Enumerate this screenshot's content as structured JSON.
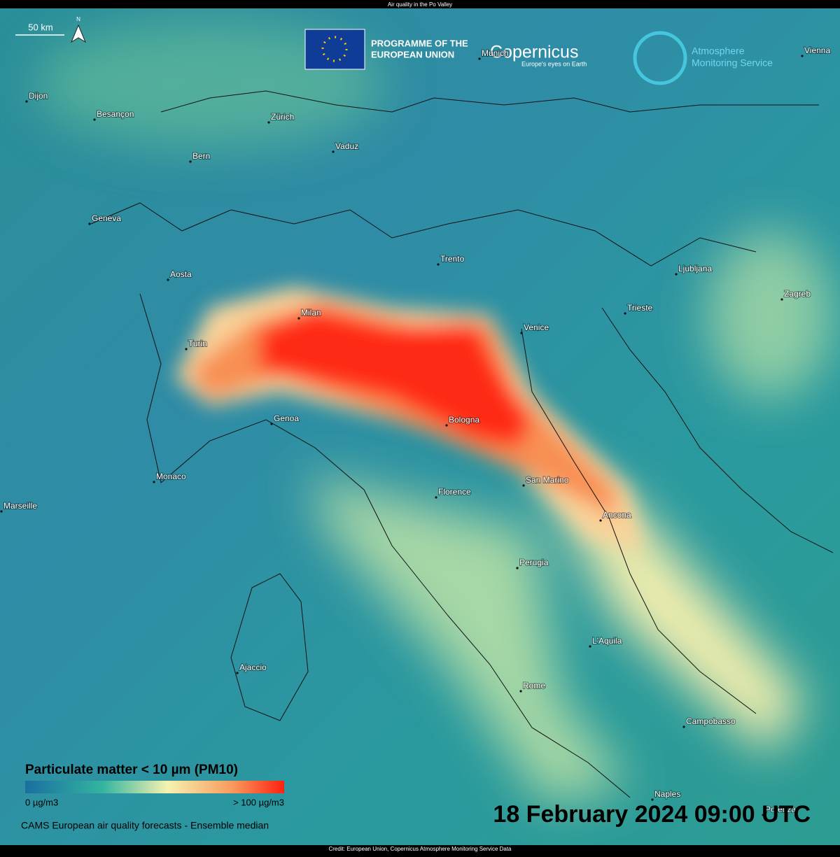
{
  "header": {
    "title": "Air quality in the Po Valley"
  },
  "scale_bar": "50 km",
  "north": "N",
  "logos": {
    "eu": [
      "PROGRAMME OF THE",
      "EUROPEAN UNION"
    ],
    "copernicus": "Copernicus",
    "copernicus_tagline": "Europe's eyes on Earth",
    "cams": [
      "Atmosphere",
      "Monitoring Service"
    ]
  },
  "cities": [
    "Dijon",
    "Besançon",
    "Zürich",
    "Vaduz",
    "Bern",
    "Geneva",
    "Aosta",
    "Trento",
    "Ljubljana",
    "Zagreb",
    "Vienna",
    "Munich",
    "Milan",
    "Turin",
    "Venice",
    "Trieste",
    "Genoa",
    "Bologna",
    "San Marino",
    "Monaco",
    "Marseille",
    "Florence",
    "Ancona",
    "Perugia",
    "L'Aquila",
    "Ajaccio",
    "Rome",
    "Campobasso",
    "Naples",
    "Potenza"
  ],
  "legend": {
    "title": "Particulate matter < 10 µm (PM10)",
    "min_label": "0 µg/m3",
    "max_label": "> 100 µg/m3",
    "caption": "CAMS European air quality forecasts - Ensemble median"
  },
  "timestamp": "18 February 2024 09:00 UTC",
  "credit": "Credit: European Union, Copernicus Atmosphere Monitoring Service Data"
}
